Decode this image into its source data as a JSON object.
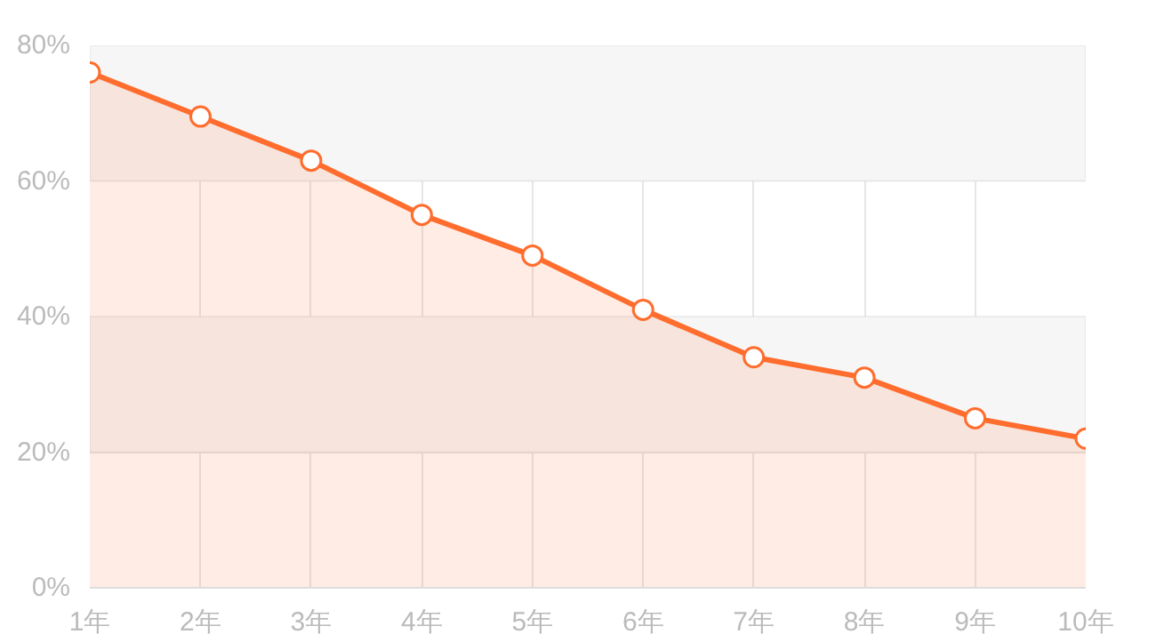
{
  "chart_data": {
    "type": "area",
    "categories": [
      "1年",
      "2年",
      "3年",
      "4年",
      "5年",
      "6年",
      "7年",
      "8年",
      "9年",
      "10年"
    ],
    "series": [
      {
        "color": "#ff6d2e",
        "values": [
          76,
          69.5,
          63,
          55,
          49,
          41,
          34,
          31,
          25,
          22
        ]
      }
    ],
    "ylim": [
      0,
      80
    ],
    "yticks": [
      {
        "value": 0,
        "label": "0%"
      },
      {
        "value": 20,
        "label": "20%"
      },
      {
        "value": 40,
        "label": "40%"
      },
      {
        "value": 60,
        "label": "60%"
      },
      {
        "value": 80,
        "label": "80%"
      }
    ],
    "bands": [
      {
        "axis": "y",
        "from": 60,
        "to": 80,
        "color": "#f6f6f6"
      },
      {
        "axis": "y",
        "from": 20,
        "to": 40,
        "color": "#f6f6f6"
      }
    ],
    "grid": true,
    "marker": "circle",
    "line_style": "solid"
  }
}
